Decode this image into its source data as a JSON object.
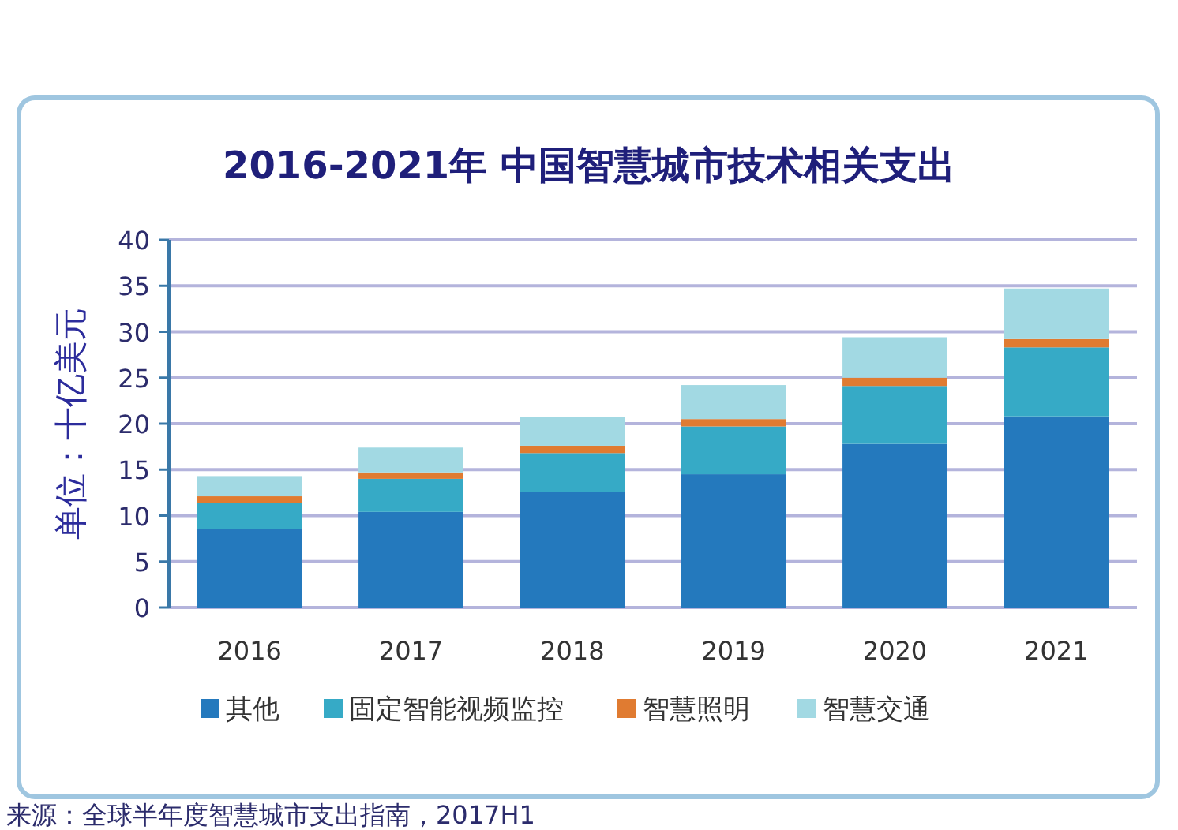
{
  "chart_data": {
    "type": "bar",
    "stacked": true,
    "title": "2016-2021年 中国智慧城市技术相关支出",
    "ylabel": "单位：十亿美元",
    "categories": [
      "2016",
      "2017",
      "2018",
      "2019",
      "2020",
      "2021"
    ],
    "series": [
      {
        "name": "其他",
        "color": "#2479bd",
        "values": [
          8.5,
          10.4,
          12.6,
          14.5,
          17.8,
          20.8
        ]
      },
      {
        "name": "固定智能视频监控",
        "color": "#36aac6",
        "values": [
          2.9,
          3.6,
          4.2,
          5.2,
          6.3,
          7.5
        ]
      },
      {
        "name": "智慧照明",
        "color": "#e07b31",
        "values": [
          0.7,
          0.7,
          0.8,
          0.8,
          0.9,
          0.9
        ]
      },
      {
        "name": "智慧交通",
        "color": "#a2d9e3",
        "values": [
          2.2,
          2.7,
          3.1,
          3.7,
          4.4,
          5.5
        ]
      }
    ],
    "ylim": [
      0,
      40
    ],
    "yticks": [
      0,
      5,
      10,
      15,
      20,
      25,
      30,
      35,
      40
    ],
    "grid": "y",
    "legend": "bottom",
    "annotations": [
      "来源：全球半年度智慧城市支出指南，2017H1"
    ]
  }
}
